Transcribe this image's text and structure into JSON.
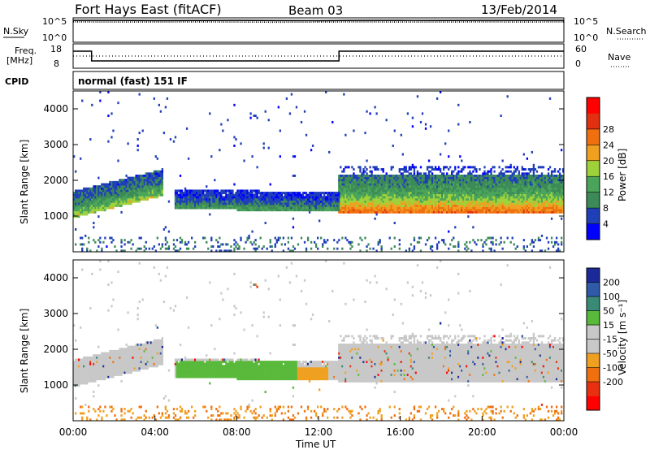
{
  "header": {
    "station": "Fort Hays East (fitACF)",
    "beam": "Beam 03",
    "date": "13/Feb/2014"
  },
  "strip_labels": {
    "nsky": "N.Sky",
    "nsearch": "N.Search",
    "freq_line1": "Freq.",
    "freq_line2": "[MHz]",
    "nave": "Nave",
    "cpid": "CPID",
    "cpid_value": "normal (fast) 151 IF"
  },
  "colors": {
    "power": [
      "#0000ff",
      "#1f3fb8",
      "#3c8a57",
      "#4aa55a",
      "#9fd23a",
      "#f0a020",
      "#f07010",
      "#e23010",
      "#ff0000"
    ],
    "velocity": [
      "#1c2a99",
      "#2e5aa8",
      "#3a8a78",
      "#59b93a",
      "#c8c8c8",
      "#c8c8c8",
      "#f0a020",
      "#f07010",
      "#e83010",
      "#ff0000"
    ],
    "ground_scatter": "#c8c8c8"
  },
  "chart_data": [
    {
      "type": "line",
      "name": "nsky-nsearch",
      "x": [
        0,
        2,
        4,
        6,
        8,
        10,
        12,
        14,
        16,
        18,
        20,
        22,
        24
      ],
      "series": [
        {
          "name": "N.Sky",
          "values": [
            31000,
            30000,
            28000,
            29000,
            30000,
            28000,
            27000,
            30000,
            31000,
            29000,
            30000,
            31000,
            30000
          ]
        },
        {
          "name": "N.Search",
          "values": [
            15000,
            14000,
            14000,
            15000,
            14000,
            13000,
            14000,
            15000,
            14000,
            14000,
            15000,
            14000,
            15000
          ]
        }
      ],
      "ylabel_left": "N.Sky",
      "ylabel_right": "N.Search",
      "yticks_left": [
        "10^5",
        "10^0"
      ],
      "yticks_right": [
        "10^5",
        "10^0"
      ]
    },
    {
      "type": "line",
      "name": "freq-nave",
      "x": [
        0,
        0.9,
        0.9,
        13.0,
        13.0,
        24
      ],
      "series": [
        {
          "name": "Freq.",
          "values": [
            15,
            15,
            11,
            11,
            15,
            15
          ]
        },
        {
          "name": "Nave",
          "values": [
            30,
            30,
            30,
            30,
            30,
            30
          ]
        }
      ],
      "yticks_left": [
        "18",
        "8"
      ],
      "yticks_right": [
        "60",
        "0"
      ]
    },
    {
      "type": "heatmap",
      "name": "power",
      "ylabel": "Slant Range [km]",
      "xlim": [
        0,
        24
      ],
      "ylim": [
        0,
        4500
      ],
      "yticks": [
        1000,
        2000,
        3000,
        4000
      ],
      "colorbar_label": "Power [dB]",
      "colorbar_ticks": [
        "4",
        "8",
        "12",
        "16",
        "20",
        "24",
        "28"
      ],
      "bands": [
        {
          "t0": 0.0,
          "t1": 4.4,
          "r_start": 1000,
          "r_slope": 140,
          "thick": 700,
          "peak": 18
        },
        {
          "t0": 5.0,
          "t1": 13.0,
          "r_start": 1250,
          "r_slope": -10,
          "thick": 500,
          "peak": 12
        },
        {
          "t0": 13.0,
          "t1": 24.0,
          "r_start": 1150,
          "r_slope": 0,
          "thick": 1000,
          "peak": 26
        }
      ]
    },
    {
      "type": "heatmap",
      "name": "velocity",
      "ylabel": "Slant Range [km]",
      "xlabel": "Time UT",
      "xlim": [
        0,
        24
      ],
      "ylim": [
        0,
        4500
      ],
      "xticks": [
        "00:00",
        "04:00",
        "08:00",
        "12:00",
        "16:00",
        "20:00",
        "00:00"
      ],
      "yticks": [
        1000,
        2000,
        3000,
        4000
      ],
      "colorbar_label": "Velocity [m s⁻¹]",
      "colorbar_ticks": [
        "200",
        "100",
        "50",
        "15",
        "-15",
        "-50",
        "-100",
        "-200"
      ]
    }
  ]
}
